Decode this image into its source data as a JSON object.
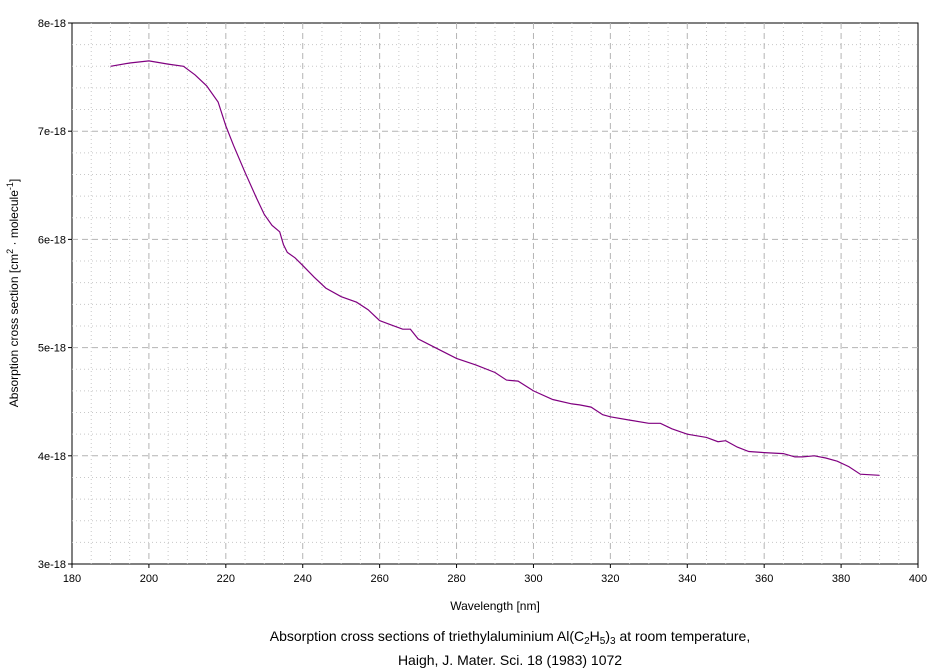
{
  "chart_data": {
    "type": "line",
    "title": "",
    "xlabel": "Wavelength [nm]",
    "ylabel_parts": [
      "Absorption cross section [cm",
      "2",
      " · molecule",
      "-1",
      "]"
    ],
    "xlim": [
      180,
      400
    ],
    "ylim": [
      3e-18,
      8e-18
    ],
    "x_ticks": [
      180,
      200,
      220,
      240,
      260,
      280,
      300,
      320,
      340,
      360,
      380,
      400
    ],
    "x_tick_labels": [
      "180",
      "200",
      "220",
      "240",
      "260",
      "280",
      "300",
      "320",
      "340",
      "360",
      "380",
      "400"
    ],
    "y_ticks": [
      3e-18,
      4e-18,
      5e-18,
      6e-18,
      7e-18,
      8e-18
    ],
    "y_tick_labels": [
      "3e-18",
      "4e-18",
      "5e-18",
      "6e-18",
      "7e-18",
      "8e-18"
    ],
    "grid": true,
    "line_color": "#800080",
    "series": [
      {
        "x": [
          190,
          195,
          200,
          205,
          209,
          212,
          215,
          218,
          220,
          222,
          225,
          228,
          230,
          232,
          234,
          235,
          236,
          238,
          240,
          243,
          246,
          250,
          254,
          257,
          260,
          263,
          266,
          268,
          270,
          275,
          280,
          285,
          290,
          293,
          296,
          300,
          305,
          310,
          312,
          315,
          318,
          320,
          325,
          330,
          333,
          336,
          340,
          345,
          348,
          350,
          353,
          356,
          360,
          365,
          368,
          370,
          373,
          376,
          379,
          382,
          385,
          390
        ],
        "y": [
          7.6e-18,
          7.63e-18,
          7.65e-18,
          7.62e-18,
          7.6e-18,
          7.52e-18,
          7.42e-18,
          7.27e-18,
          7.05e-18,
          6.87e-18,
          6.62e-18,
          6.38e-18,
          6.23e-18,
          6.13e-18,
          6.07e-18,
          5.95e-18,
          5.88e-18,
          5.83e-18,
          5.76e-18,
          5.65e-18,
          5.55e-18,
          5.47e-18,
          5.42e-18,
          5.35e-18,
          5.25e-18,
          5.21e-18,
          5.17e-18,
          5.17e-18,
          5.08e-18,
          4.99e-18,
          4.9e-18,
          4.84e-18,
          4.77e-18,
          4.7e-18,
          4.69e-18,
          4.6e-18,
          4.52e-18,
          4.48e-18,
          4.47e-18,
          4.45e-18,
          4.38e-18,
          4.36e-18,
          4.33e-18,
          4.3e-18,
          4.3e-18,
          4.25e-18,
          4.2e-18,
          4.17e-18,
          4.13e-18,
          4.14e-18,
          4.08e-18,
          4.04e-18,
          4.03e-18,
          4.02e-18,
          3.99e-18,
          3.99e-18,
          4e-18,
          3.98e-18,
          3.95e-18,
          3.9e-18,
          3.83e-18,
          3.82e-18
        ]
      }
    ]
  },
  "caption": {
    "line1_parts": [
      "Absorption cross sections of triethylaluminium Al(C",
      "2",
      "H",
      "5",
      ")",
      "3",
      " at room temperature,"
    ],
    "line2": "Haigh, J. Mater. Sci. 18 (1983) 1072"
  }
}
